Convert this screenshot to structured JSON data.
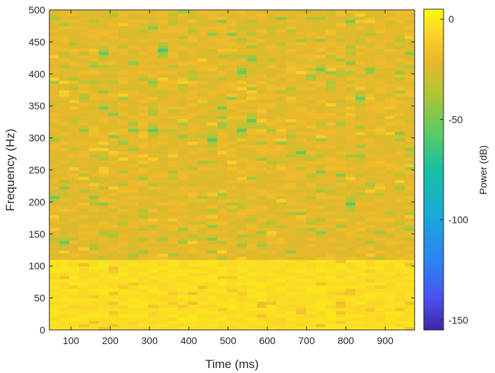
{
  "chart_data": {
    "type": "heatmap",
    "title": "",
    "xlabel": "Time (ms)",
    "ylabel": "Frequency (Hz)",
    "xlim": [
      45,
      975
    ],
    "ylim": [
      0,
      500
    ],
    "x_ticks": [
      100,
      200,
      300,
      400,
      500,
      600,
      700,
      800,
      900
    ],
    "y_ticks": [
      0,
      50,
      100,
      150,
      200,
      250,
      300,
      350,
      400,
      450,
      500
    ],
    "colorbar": {
      "label": "Power (dB)",
      "range": [
        -155,
        5
      ],
      "ticks": [
        0,
        -50,
        -100,
        -150
      ],
      "colormap": "parula",
      "colors": [
        "#3e26a8",
        "#4a52f0",
        "#2b84f4",
        "#1aa9d8",
        "#17c0a0",
        "#5ecb63",
        "#b3c533",
        "#eab72b",
        "#fbd229",
        "#f9fb0e"
      ]
    },
    "grid": false,
    "description_values": {
      "low_band_hz": [
        0,
        110
      ],
      "low_band_power_db": -4,
      "upper_band_power_db": -22,
      "narrowband_peaks": [
        {
          "x": 70,
          "y": 205,
          "power": -50
        },
        {
          "x": 95,
          "y": 138,
          "power": -52
        },
        {
          "x": 185,
          "y": 431,
          "power": -55
        },
        {
          "x": 185,
          "y": 348,
          "power": -48
        },
        {
          "x": 210,
          "y": 335,
          "power": -45
        },
        {
          "x": 255,
          "y": 416,
          "power": -45
        },
        {
          "x": 255,
          "y": 313,
          "power": -48
        },
        {
          "x": 305,
          "y": 310,
          "power": -55
        },
        {
          "x": 305,
          "y": 474,
          "power": -48
        },
        {
          "x": 335,
          "y": 438,
          "power": -62
        },
        {
          "x": 465,
          "y": 297,
          "power": -58
        },
        {
          "x": 490,
          "y": 347,
          "power": -48
        },
        {
          "x": 535,
          "y": 400,
          "power": -52
        },
        {
          "x": 535,
          "y": 313,
          "power": -55
        },
        {
          "x": 560,
          "y": 326,
          "power": -55
        },
        {
          "x": 560,
          "y": 420,
          "power": -48
        },
        {
          "x": 685,
          "y": 278,
          "power": -52
        },
        {
          "x": 740,
          "y": 406,
          "power": -50
        },
        {
          "x": 810,
          "y": 481,
          "power": -48
        },
        {
          "x": 810,
          "y": 195,
          "power": -58
        },
        {
          "x": 835,
          "y": 361,
          "power": -55
        },
        {
          "x": 855,
          "y": 406,
          "power": -45
        },
        {
          "x": 960,
          "y": 432,
          "power": -45
        }
      ]
    }
  }
}
